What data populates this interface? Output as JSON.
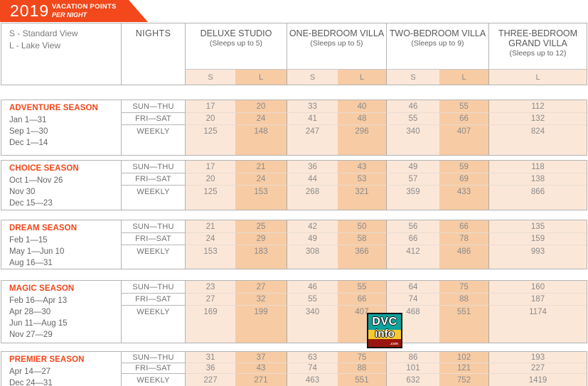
{
  "banner": {
    "year": "2019",
    "title": "VACATION POINTS",
    "subtitle": "PER NIGHT"
  },
  "legend": {
    "standard": "S - Standard View",
    "lake": "L - Lake View"
  },
  "header": {
    "nights_label": "NIGHTS",
    "room_types": [
      {
        "name": "DELUXE STUDIO",
        "sleeps": "(Sleeps up to 5)",
        "views": [
          "S",
          "L"
        ]
      },
      {
        "name": "ONE-BEDROOM VILLA",
        "sleeps": "(Sleeps up to 5)",
        "views": [
          "S",
          "L"
        ]
      },
      {
        "name": "TWO-BEDROOM VILLA",
        "sleeps": "(Sleeps up to 9)",
        "views": [
          "S",
          "L"
        ]
      },
      {
        "name": "THREE-BEDROOM GRAND VILLA",
        "sleeps": "(Sleeps up to 12)",
        "views": [
          "L"
        ]
      }
    ]
  },
  "seasons": [
    {
      "name": "ADVENTURE SEASON",
      "dates": [
        "Jan 1—31",
        "Sep 1—30",
        "Dec 1—14"
      ],
      "rows": [
        {
          "label": "SUN—THU",
          "values": [
            17,
            20,
            33,
            40,
            46,
            55,
            112
          ]
        },
        {
          "label": "FRI—SAT",
          "values": [
            20,
            24,
            41,
            48,
            55,
            66,
            132
          ]
        },
        {
          "label": "WEEKLY",
          "values": [
            125,
            148,
            247,
            296,
            340,
            407,
            824
          ]
        }
      ]
    },
    {
      "name": "CHOICE SEASON",
      "dates": [
        "Oct 1—Nov 26",
        "Nov 30",
        "Dec 15—23"
      ],
      "rows": [
        {
          "label": "SUN—THU",
          "values": [
            17,
            21,
            36,
            43,
            49,
            59,
            118
          ]
        },
        {
          "label": "FRI—SAT",
          "values": [
            20,
            24,
            44,
            53,
            57,
            69,
            138
          ]
        },
        {
          "label": "WEEKLY",
          "values": [
            125,
            153,
            268,
            321,
            359,
            433,
            866
          ]
        }
      ]
    },
    {
      "name": "DREAM SEASON",
      "dates": [
        "Feb 1—15",
        "May 1—Jun 10",
        "Aug 16—31"
      ],
      "rows": [
        {
          "label": "SUN—THU",
          "values": [
            21,
            25,
            42,
            50,
            56,
            66,
            135
          ]
        },
        {
          "label": "FRI—SAT",
          "values": [
            24,
            29,
            49,
            58,
            66,
            78,
            159
          ]
        },
        {
          "label": "WEEKLY",
          "values": [
            153,
            183,
            308,
            366,
            412,
            486,
            993
          ]
        }
      ]
    },
    {
      "name": "MAGIC SEASON",
      "dates": [
        "Feb 16—Apr 13",
        "Apr 28—30",
        "Jun 11—Aug 15",
        "Nov 27—29"
      ],
      "rows": [
        {
          "label": "SUN—THU",
          "values": [
            23,
            27,
            46,
            55,
            64,
            75,
            160
          ]
        },
        {
          "label": "FRI—SAT",
          "values": [
            27,
            32,
            55,
            66,
            74,
            88,
            187
          ]
        },
        {
          "label": "WEEKLY",
          "values": [
            169,
            199,
            340,
            407,
            468,
            551,
            1174
          ]
        }
      ]
    },
    {
      "name": "PREMIER SEASON",
      "dates": [
        "Apr 14—27",
        "Dec 24—31"
      ],
      "rows": [
        {
          "label": "SUN—THU",
          "values": [
            31,
            37,
            63,
            75,
            86,
            102,
            193
          ]
        },
        {
          "label": "FRI—SAT",
          "values": [
            36,
            43,
            74,
            88,
            101,
            121,
            227
          ]
        },
        {
          "label": "WEEKLY",
          "values": [
            227,
            271,
            463,
            551,
            632,
            752,
            1419
          ]
        }
      ]
    }
  ],
  "watermark": {
    "top": "DVC",
    "middle": "info",
    "bottom": ".com"
  },
  "colors": {
    "accent": "#F3461A",
    "banner": "#F2481B",
    "cell_light": "#FBE7D8",
    "cell_dark": "#F7CBA4",
    "watermark_teal": "#0DA29C",
    "watermark_yellow": "#F5C92F",
    "watermark_red": "#9A150E"
  }
}
